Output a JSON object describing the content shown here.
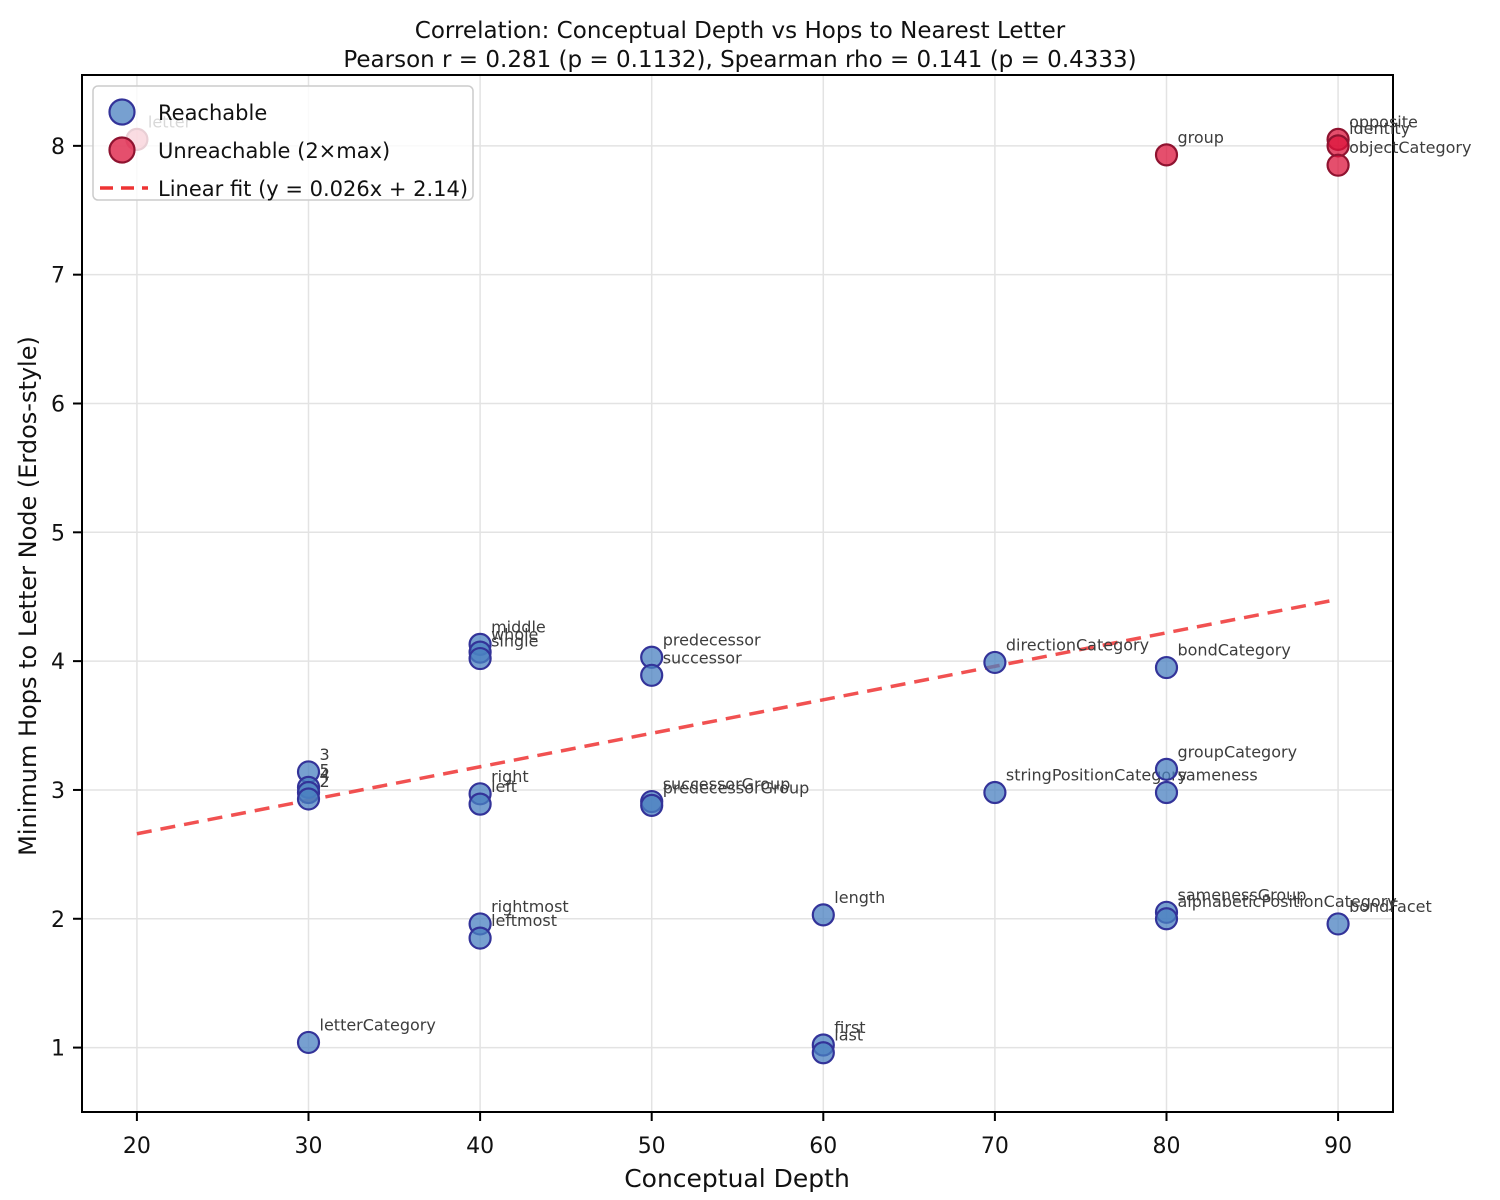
{
  "chart_data": {
    "type": "scatter",
    "title": "Correlation: Conceptual Depth vs Hops to Nearest Letter",
    "subtitle": "Pearson r = 0.281 (p = 0.1132), Spearman rho = 0.141 (p = 0.4333)",
    "xlabel": "Conceptual Depth",
    "ylabel": "Minimum Hops to Letter Node (Erdos-style)",
    "x_ticks": [
      20,
      30,
      40,
      50,
      60,
      70,
      80,
      90
    ],
    "y_ticks": [
      1,
      2,
      3,
      4,
      5,
      6,
      7,
      8
    ],
    "xlim": [
      16.8,
      93.2
    ],
    "ylim": [
      0.5,
      8.55
    ],
    "grid": true,
    "colors": {
      "reachable_fill": "#4a80c0",
      "reachable_edge": "#333399",
      "unreachable_fill": "#dc143c",
      "unreachable_edge": "#8f1330",
      "trend": "#ee3333",
      "grid": "#e3e3e3",
      "frame": "#000000",
      "annotation": "#3d3d3d"
    },
    "legend": {
      "position": "upper-left",
      "items": [
        {
          "label": "Reachable",
          "marker": "circle",
          "fill": "#4a80c0",
          "edge": "#333399"
        },
        {
          "label": "Unreachable (2×max)",
          "marker": "circle",
          "fill": "#dc143c",
          "edge": "#8f1330"
        },
        {
          "label": "Linear fit (y = 0.026x + 2.14)",
          "marker": "dashed-line",
          "color": "#ee3333"
        }
      ]
    },
    "series": [
      {
        "name": "Reachable",
        "fill": "#4a80c0",
        "edge": "#333399",
        "points": [
          {
            "label": "middle",
            "x": 40,
            "y": 4.13
          },
          {
            "label": "whole",
            "x": 40,
            "y": 4.07
          },
          {
            "label": "single",
            "x": 40,
            "y": 4.02
          },
          {
            "label": "predecessor",
            "x": 50,
            "y": 4.03
          },
          {
            "label": "successor",
            "x": 50,
            "y": 3.89
          },
          {
            "label": "directionCategory",
            "x": 70,
            "y": 3.99
          },
          {
            "label": "bondCategory",
            "x": 80,
            "y": 3.95
          },
          {
            "label": "3",
            "x": 30,
            "y": 3.14
          },
          {
            "label": "5",
            "x": 30,
            "y": 3.02
          },
          {
            "label": "4",
            "x": 30,
            "y": 2.98
          },
          {
            "label": "2",
            "x": 30,
            "y": 2.93
          },
          {
            "label": "right",
            "x": 40,
            "y": 2.97
          },
          {
            "label": "left",
            "x": 40,
            "y": 2.89
          },
          {
            "label": "successorGroup",
            "x": 50,
            "y": 2.91
          },
          {
            "label": "predecessorGroup",
            "x": 50,
            "y": 2.88
          },
          {
            "label": "stringPositionCategory",
            "x": 70,
            "y": 2.98
          },
          {
            "label": "groupCategory",
            "x": 80,
            "y": 3.16
          },
          {
            "label": "sameness",
            "x": 80,
            "y": 2.98
          },
          {
            "label": "length",
            "x": 60,
            "y": 2.03
          },
          {
            "label": "samenessGroup",
            "x": 80,
            "y": 2.05
          },
          {
            "label": "alphabeticPositionCategory",
            "x": 80,
            "y": 2.0
          },
          {
            "label": "bondFacet",
            "x": 90,
            "y": 1.96
          },
          {
            "label": "rightmost",
            "x": 40,
            "y": 1.96
          },
          {
            "label": "leftmost",
            "x": 40,
            "y": 1.85
          },
          {
            "label": "letterCategory",
            "x": 30,
            "y": 1.04
          },
          {
            "label": "first",
            "x": 60,
            "y": 1.02
          },
          {
            "label": "last",
            "x": 60,
            "y": 0.96
          }
        ]
      },
      {
        "name": "Unreachable (2×max)",
        "fill": "#dc143c",
        "edge": "#8f1330",
        "points": [
          {
            "label": "letter",
            "x": 20,
            "y": 8.05
          },
          {
            "label": "group",
            "x": 80,
            "y": 7.93
          },
          {
            "label": "opposite",
            "x": 90,
            "y": 8.05
          },
          {
            "label": "identity",
            "x": 90,
            "y": 8.0
          },
          {
            "label": "objectCategory",
            "x": 90,
            "y": 7.85
          }
        ]
      }
    ],
    "trend": {
      "label": "Linear fit (y = 0.026x + 2.14)",
      "slope": 0.026,
      "intercept": 2.14,
      "x_start": 20,
      "x_end": 90
    }
  }
}
